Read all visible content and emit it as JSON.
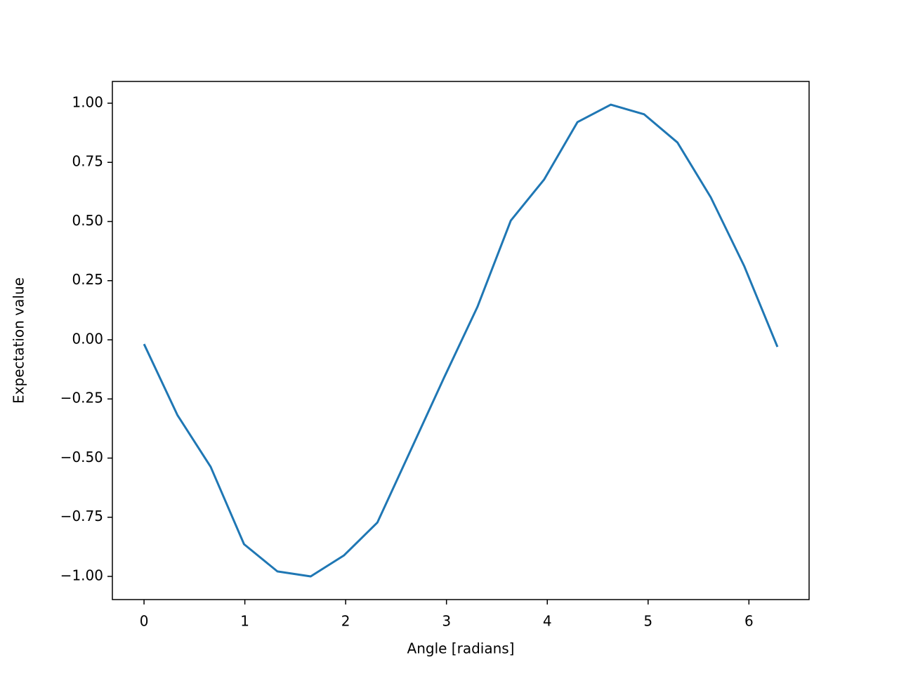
{
  "chart_data": {
    "type": "line",
    "x_label": "Angle [radians]",
    "y_label": "Expectation value",
    "x": [
      0,
      0.331,
      0.661,
      0.992,
      1.323,
      1.653,
      1.984,
      2.315,
      2.646,
      2.976,
      3.307,
      3.638,
      3.968,
      4.299,
      4.63,
      4.961,
      5.291,
      5.622,
      5.953,
      6.283
    ],
    "series": [
      {
        "color": "#1f77b4",
        "values": [
          -0.018,
          -0.318,
          -0.537,
          -0.864,
          -0.979,
          -1.0,
          -0.911,
          -0.772,
          -0.466,
          -0.16,
          0.139,
          0.504,
          0.677,
          0.92,
          0.994,
          0.953,
          0.834,
          0.602,
          0.312,
          -0.03
        ]
      }
    ],
    "xlim": [
      -0.314,
      6.597
    ],
    "ylim": [
      -1.098,
      1.092
    ],
    "xticks": [
      0,
      1,
      2,
      3,
      4,
      5,
      6
    ],
    "yticks": [
      {
        "value": -1,
        "label": "−1.00"
      },
      {
        "value": -0.75,
        "label": "−0.75"
      },
      {
        "value": -0.5,
        "label": "−0.50"
      },
      {
        "value": -0.25,
        "label": "−0.25"
      },
      {
        "value": 0,
        "label": "0.00"
      },
      {
        "value": 0.25,
        "label": "0.25"
      },
      {
        "value": 0.5,
        "label": "0.50"
      },
      {
        "value": 0.75,
        "label": "0.75"
      },
      {
        "value": 1,
        "label": "1.00"
      }
    ]
  }
}
